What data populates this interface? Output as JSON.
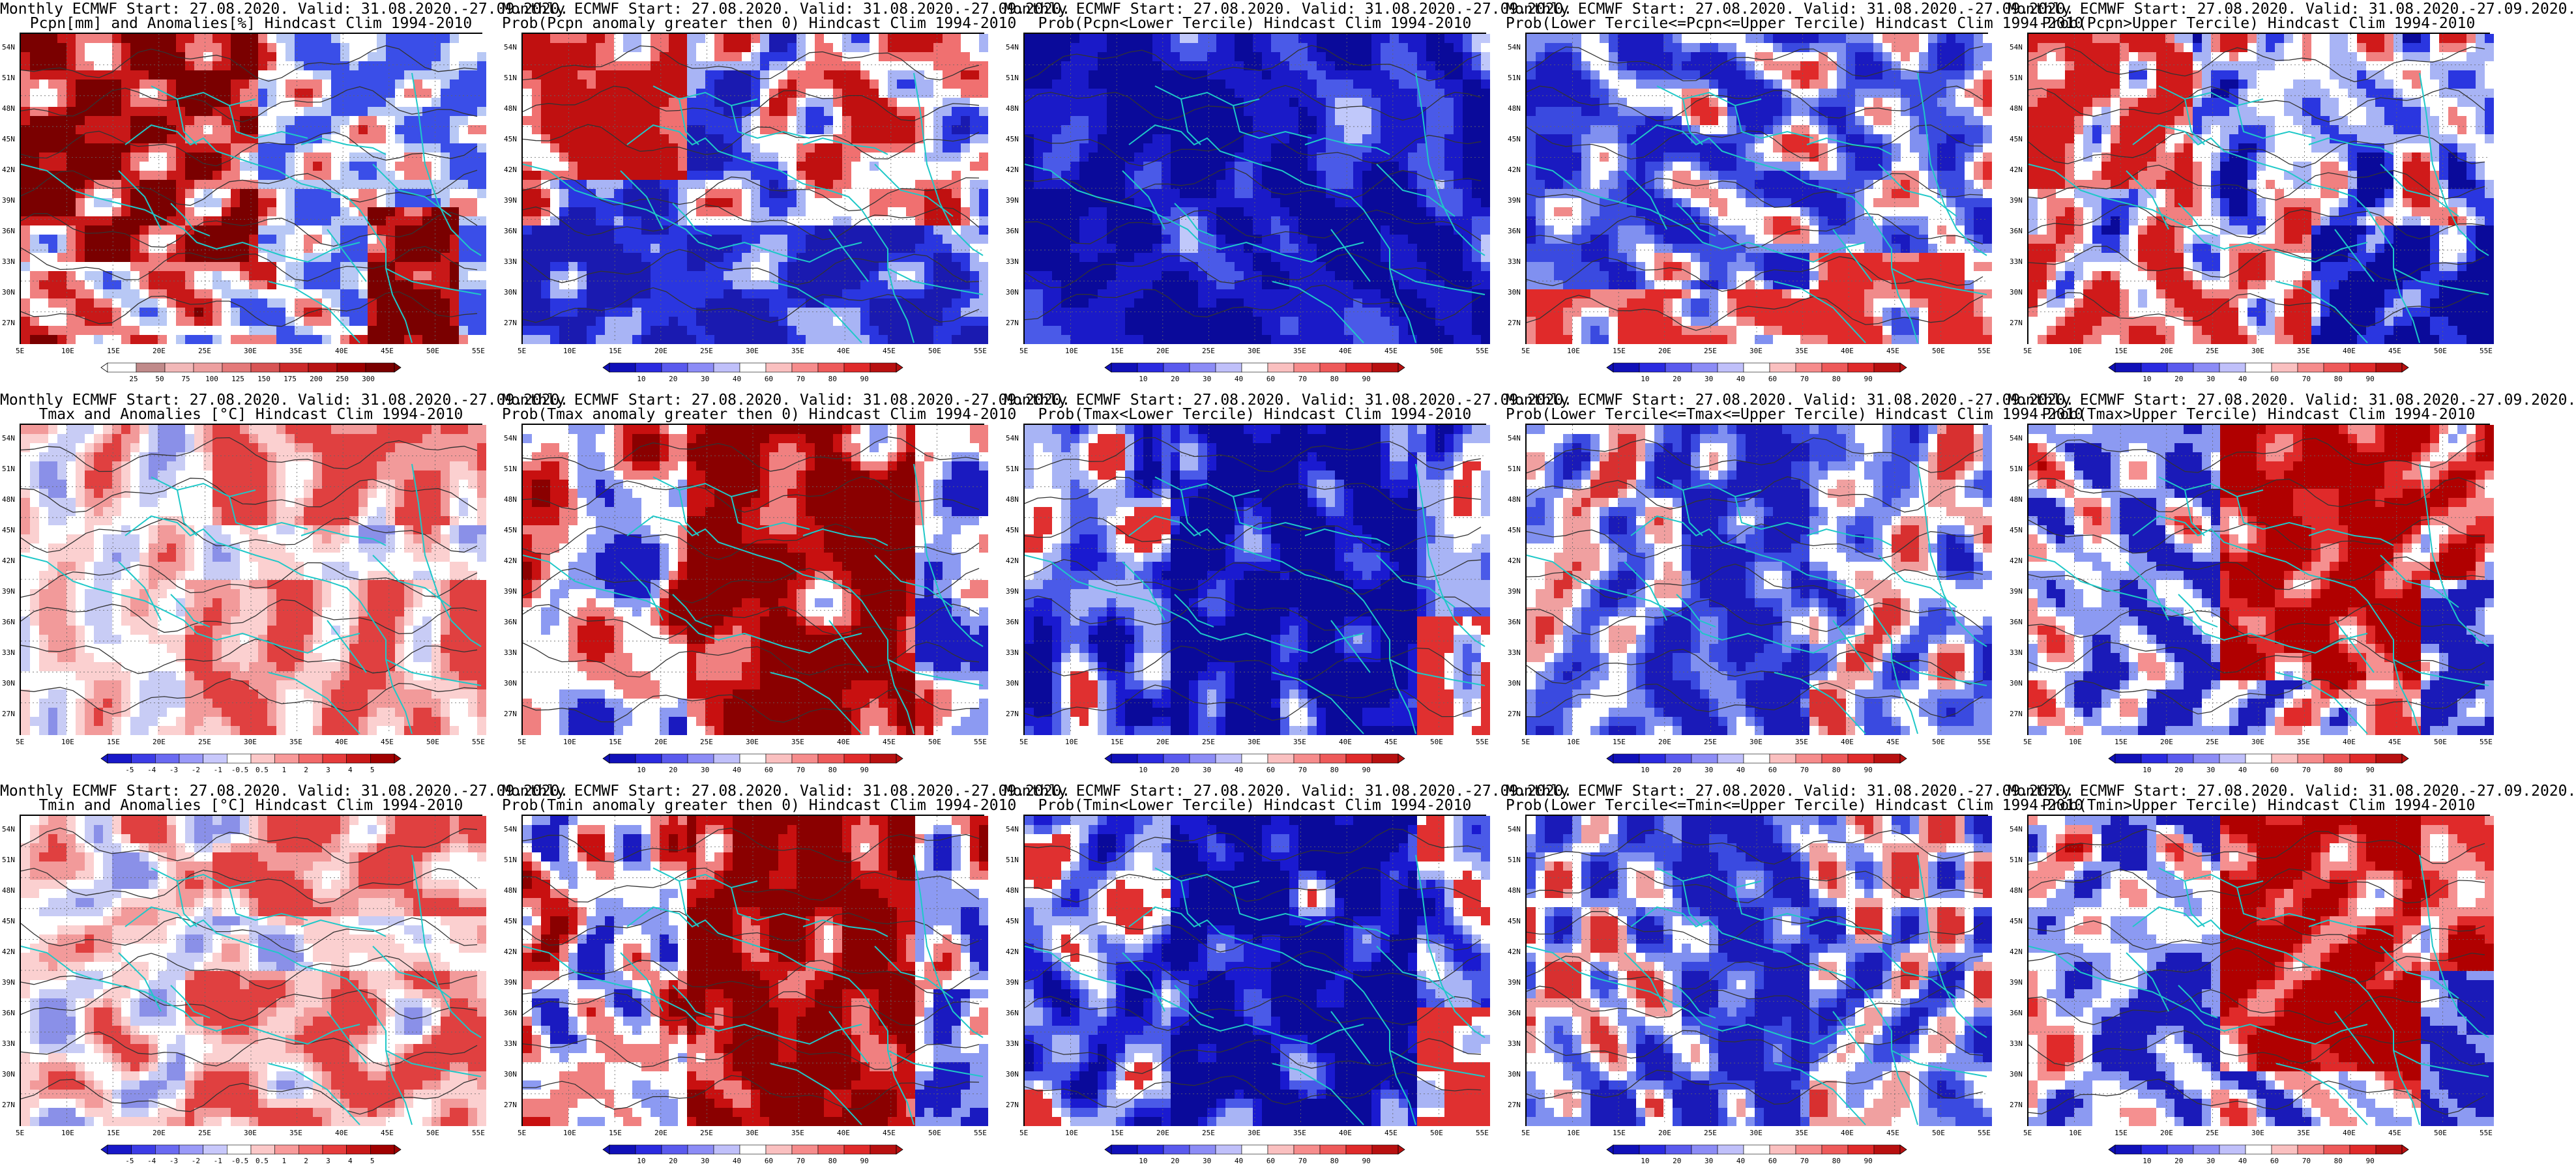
{
  "figure": {
    "lat_labels": [
      "54N",
      "51N",
      "48N",
      "45N",
      "42N",
      "39N",
      "36N",
      "33N",
      "30N",
      "27N"
    ],
    "lon_labels": [
      "5E",
      "10E",
      "15E",
      "20E",
      "25E",
      "30E",
      "35E",
      "40E",
      "45E",
      "50E",
      "55E"
    ]
  },
  "colorbars": {
    "pcpn": {
      "colors": [
        "#ffffff",
        "#c08a8a",
        "#f2b8b8",
        "#eda0a0",
        "#e47a7a",
        "#d85555",
        "#cc2a2a",
        "#b81414",
        "#9c0000",
        "#7a0000"
      ],
      "labels": [
        "25",
        "50",
        "75",
        "100",
        "125",
        "150",
        "175",
        "200",
        "250",
        "300"
      ]
    },
    "anom": {
      "colors": [
        "#1818c8",
        "#3c3ce6",
        "#6a6af2",
        "#9a9af8",
        "#c8c8fb",
        "#ffffff",
        "#fbc8c8",
        "#f89a9a",
        "#f26a6a",
        "#e63c3c",
        "#c81818",
        "#a00000"
      ],
      "labels": [
        "-5",
        "-4",
        "-3",
        "-2",
        "-1",
        "-0.5",
        "0.5",
        "1",
        "2",
        "3",
        "4",
        "5"
      ]
    },
    "prob": {
      "colors": [
        "#1010b8",
        "#2a2ae0",
        "#5a5aee",
        "#8c8cf6",
        "#c0c0fa",
        "#ffffff",
        "#fac0c0",
        "#f68c8c",
        "#ee5a5a",
        "#e02a2a",
        "#b81010"
      ],
      "labels": [
        "10",
        "20",
        "30",
        "40",
        "60",
        "70",
        "80",
        "90"
      ]
    }
  },
  "panels": [
    {
      "title1": "Monthly ECMWF Start: 27.08.2020. Valid: 31.08.2020.-27.09.2020.",
      "title2": "Pcpn[mm] and Anomalies[%] Hindcast Clim 1994-2010",
      "cbar": "pcpn",
      "scheme": "anom_pcpn",
      "palette": [
        "#7a0000",
        "#c81818",
        "#f08080",
        "#ffffff",
        "#b8c8f5",
        "#3a4ee8"
      ]
    },
    {
      "title1": "Monthly ECMWF Start: 27.08.2020. Valid: 31.08.2020.-27.09.2020.",
      "title2": "Prob(Pcpn anomaly greater then 0) Hindcast Clim 1994-2010",
      "cbar": "prob",
      "scheme": "prob_pcpn_pos",
      "palette": [
        "#c01010",
        "#f07070",
        "#ffffff",
        "#a8b4f5",
        "#2a36e0",
        "#1a1ab0"
      ]
    },
    {
      "title1": "Monthly ECMWF Start: 27.08.2020. Valid: 31.08.2020.-27.09.2020.",
      "title2": "Prob(Pcpn<Lower Tercile) Hindcast Clim 1994-2010",
      "cbar": "prob",
      "scheme": "prob_pcpn_low",
      "palette": [
        "#0a0a9a",
        "#1a1ac8",
        "#4a5ae8",
        "#c0c8fa",
        "#ffffff",
        "#f0a0a0"
      ]
    },
    {
      "title1": "Monthly ECMWF Start: 27.08.2020. Valid: 31.08.2020.-27.09.2020.",
      "title2": "Prob(Lower Tercile<=Pcpn<=Upper Tercile) Hindcast Clim 1994-2010",
      "cbar": "prob",
      "scheme": "prob_pcpn_mid",
      "palette": [
        "#1a1ac0",
        "#3a4ae0",
        "#8090f0",
        "#ffffff",
        "#f08a8a",
        "#e02a2a"
      ]
    },
    {
      "title1": "Monthly ECMWF Start: 27.08.2020. Valid: 31.08.2020.-27.09.2020.",
      "title2": "Prob(Pcpn>Upper Tercile) Hindcast Clim 1994-2010",
      "cbar": "prob",
      "scheme": "prob_pcpn_high",
      "palette": [
        "#d01a1a",
        "#f08080",
        "#ffffff",
        "#a8b4f5",
        "#2a36e0",
        "#0a0a9a"
      ]
    },
    {
      "title1": "Monthly ECMWF Start: 27.08.2020. Valid: 31.08.2020.-27.09.2020.",
      "title2": "Tmax and Anomalies [°C] Hindcast Clim 1994-2010",
      "cbar": "anom",
      "scheme": "anom_t",
      "palette": [
        "#e04040",
        "#f29a9a",
        "#fbd0d0",
        "#ffffff",
        "#c8ccf5",
        "#8a90e8"
      ]
    },
    {
      "title1": "Monthly ECMWF Start: 27.08.2020. Valid: 31.08.2020.-27.09.2020.",
      "title2": "Prob(Tmax anomaly greater then 0) Hindcast Clim 1994-2010",
      "cbar": "prob",
      "scheme": "prob_t_pos",
      "palette": [
        "#8a0000",
        "#c81010",
        "#f08080",
        "#ffffff",
        "#8c9af2",
        "#1a1ac0"
      ]
    },
    {
      "title1": "Monthly ECMWF Start: 27.08.2020. Valid: 31.08.2020.-27.09.2020.",
      "title2": "Prob(Tmax<Lower Tercile) Hindcast Clim 1994-2010",
      "cbar": "prob",
      "scheme": "prob_t_low",
      "palette": [
        "#0a0a9a",
        "#1a1ad0",
        "#4a5ae8",
        "#a8b4f5",
        "#ffffff",
        "#e03030"
      ]
    },
    {
      "title1": "Monthly ECMWF Start: 27.08.2020. Valid: 31.08.2020.-27.09.2020.",
      "title2": "Prob(Lower Tercile<=Tmax<=Upper Tercile) Hindcast Clim 1994-2010",
      "cbar": "prob",
      "scheme": "prob_t_mid",
      "palette": [
        "#1a1ab8",
        "#3a4ae0",
        "#8090f0",
        "#ffffff",
        "#f0a0a0",
        "#d83030"
      ]
    },
    {
      "title1": "Monthly ECMWF Start: 27.08.2020. Valid: 31.08.2020.-27.09.2020.",
      "title2": "Prob(Tmax>Upper Tercile) Hindcast Clim 1994-2010",
      "cbar": "prob",
      "scheme": "prob_t_high",
      "palette": [
        "#b00000",
        "#e02a2a",
        "#f59090",
        "#ffffff",
        "#8c9af2",
        "#1a1ab8"
      ]
    },
    {
      "title1": "Monthly ECMWF Start: 27.08.2020. Valid: 31.08.2020.-27.09.2020.",
      "title2": "Tmin and Anomalies [°C] Hindcast Clim 1994-2010",
      "cbar": "anom",
      "scheme": "anom_t",
      "palette": [
        "#e04040",
        "#f29a9a",
        "#fbd0d0",
        "#ffffff",
        "#c8ccf5",
        "#8a90e8"
      ]
    },
    {
      "title1": "Monthly ECMWF Start: 27.08.2020. Valid: 31.08.2020.-27.09.2020.",
      "title2": "Prob(Tmin anomaly greater then 0) Hindcast Clim 1994-2010",
      "cbar": "prob",
      "scheme": "prob_t_pos",
      "palette": [
        "#8a0000",
        "#c81010",
        "#f08080",
        "#ffffff",
        "#8c9af2",
        "#1a1ac0"
      ]
    },
    {
      "title1": "Monthly ECMWF Start: 27.08.2020. Valid: 31.08.2020.-27.09.2020.",
      "title2": "Prob(Tmin<Lower Tercile) Hindcast Clim 1994-2010",
      "cbar": "prob",
      "scheme": "prob_t_low",
      "palette": [
        "#0a0a9a",
        "#1a1ad0",
        "#4a5ae8",
        "#a8b4f5",
        "#ffffff",
        "#e03030"
      ]
    },
    {
      "title1": "Monthly ECMWF Start: 27.08.2020. Valid: 31.08.2020.-27.09.2020.",
      "title2": "Prob(Lower Tercile<=Tmin<=Upper Tercile) Hindcast Clim 1994-2010",
      "cbar": "prob",
      "scheme": "prob_t_mid",
      "palette": [
        "#1a1ab8",
        "#3a4ae0",
        "#8090f0",
        "#ffffff",
        "#f0a0a0",
        "#d83030"
      ]
    },
    {
      "title1": "Monthly ECMWF Start: 27.08.2020. Valid: 31.08.2020.-27.09.2020.",
      "title2": "Prob(Tmin>Upper Tercile) Hindcast Clim 1994-2010",
      "cbar": "prob",
      "scheme": "prob_t_high",
      "palette": [
        "#b00000",
        "#e02a2a",
        "#f59090",
        "#ffffff",
        "#8c9af2",
        "#1a1ab8"
      ]
    }
  ]
}
